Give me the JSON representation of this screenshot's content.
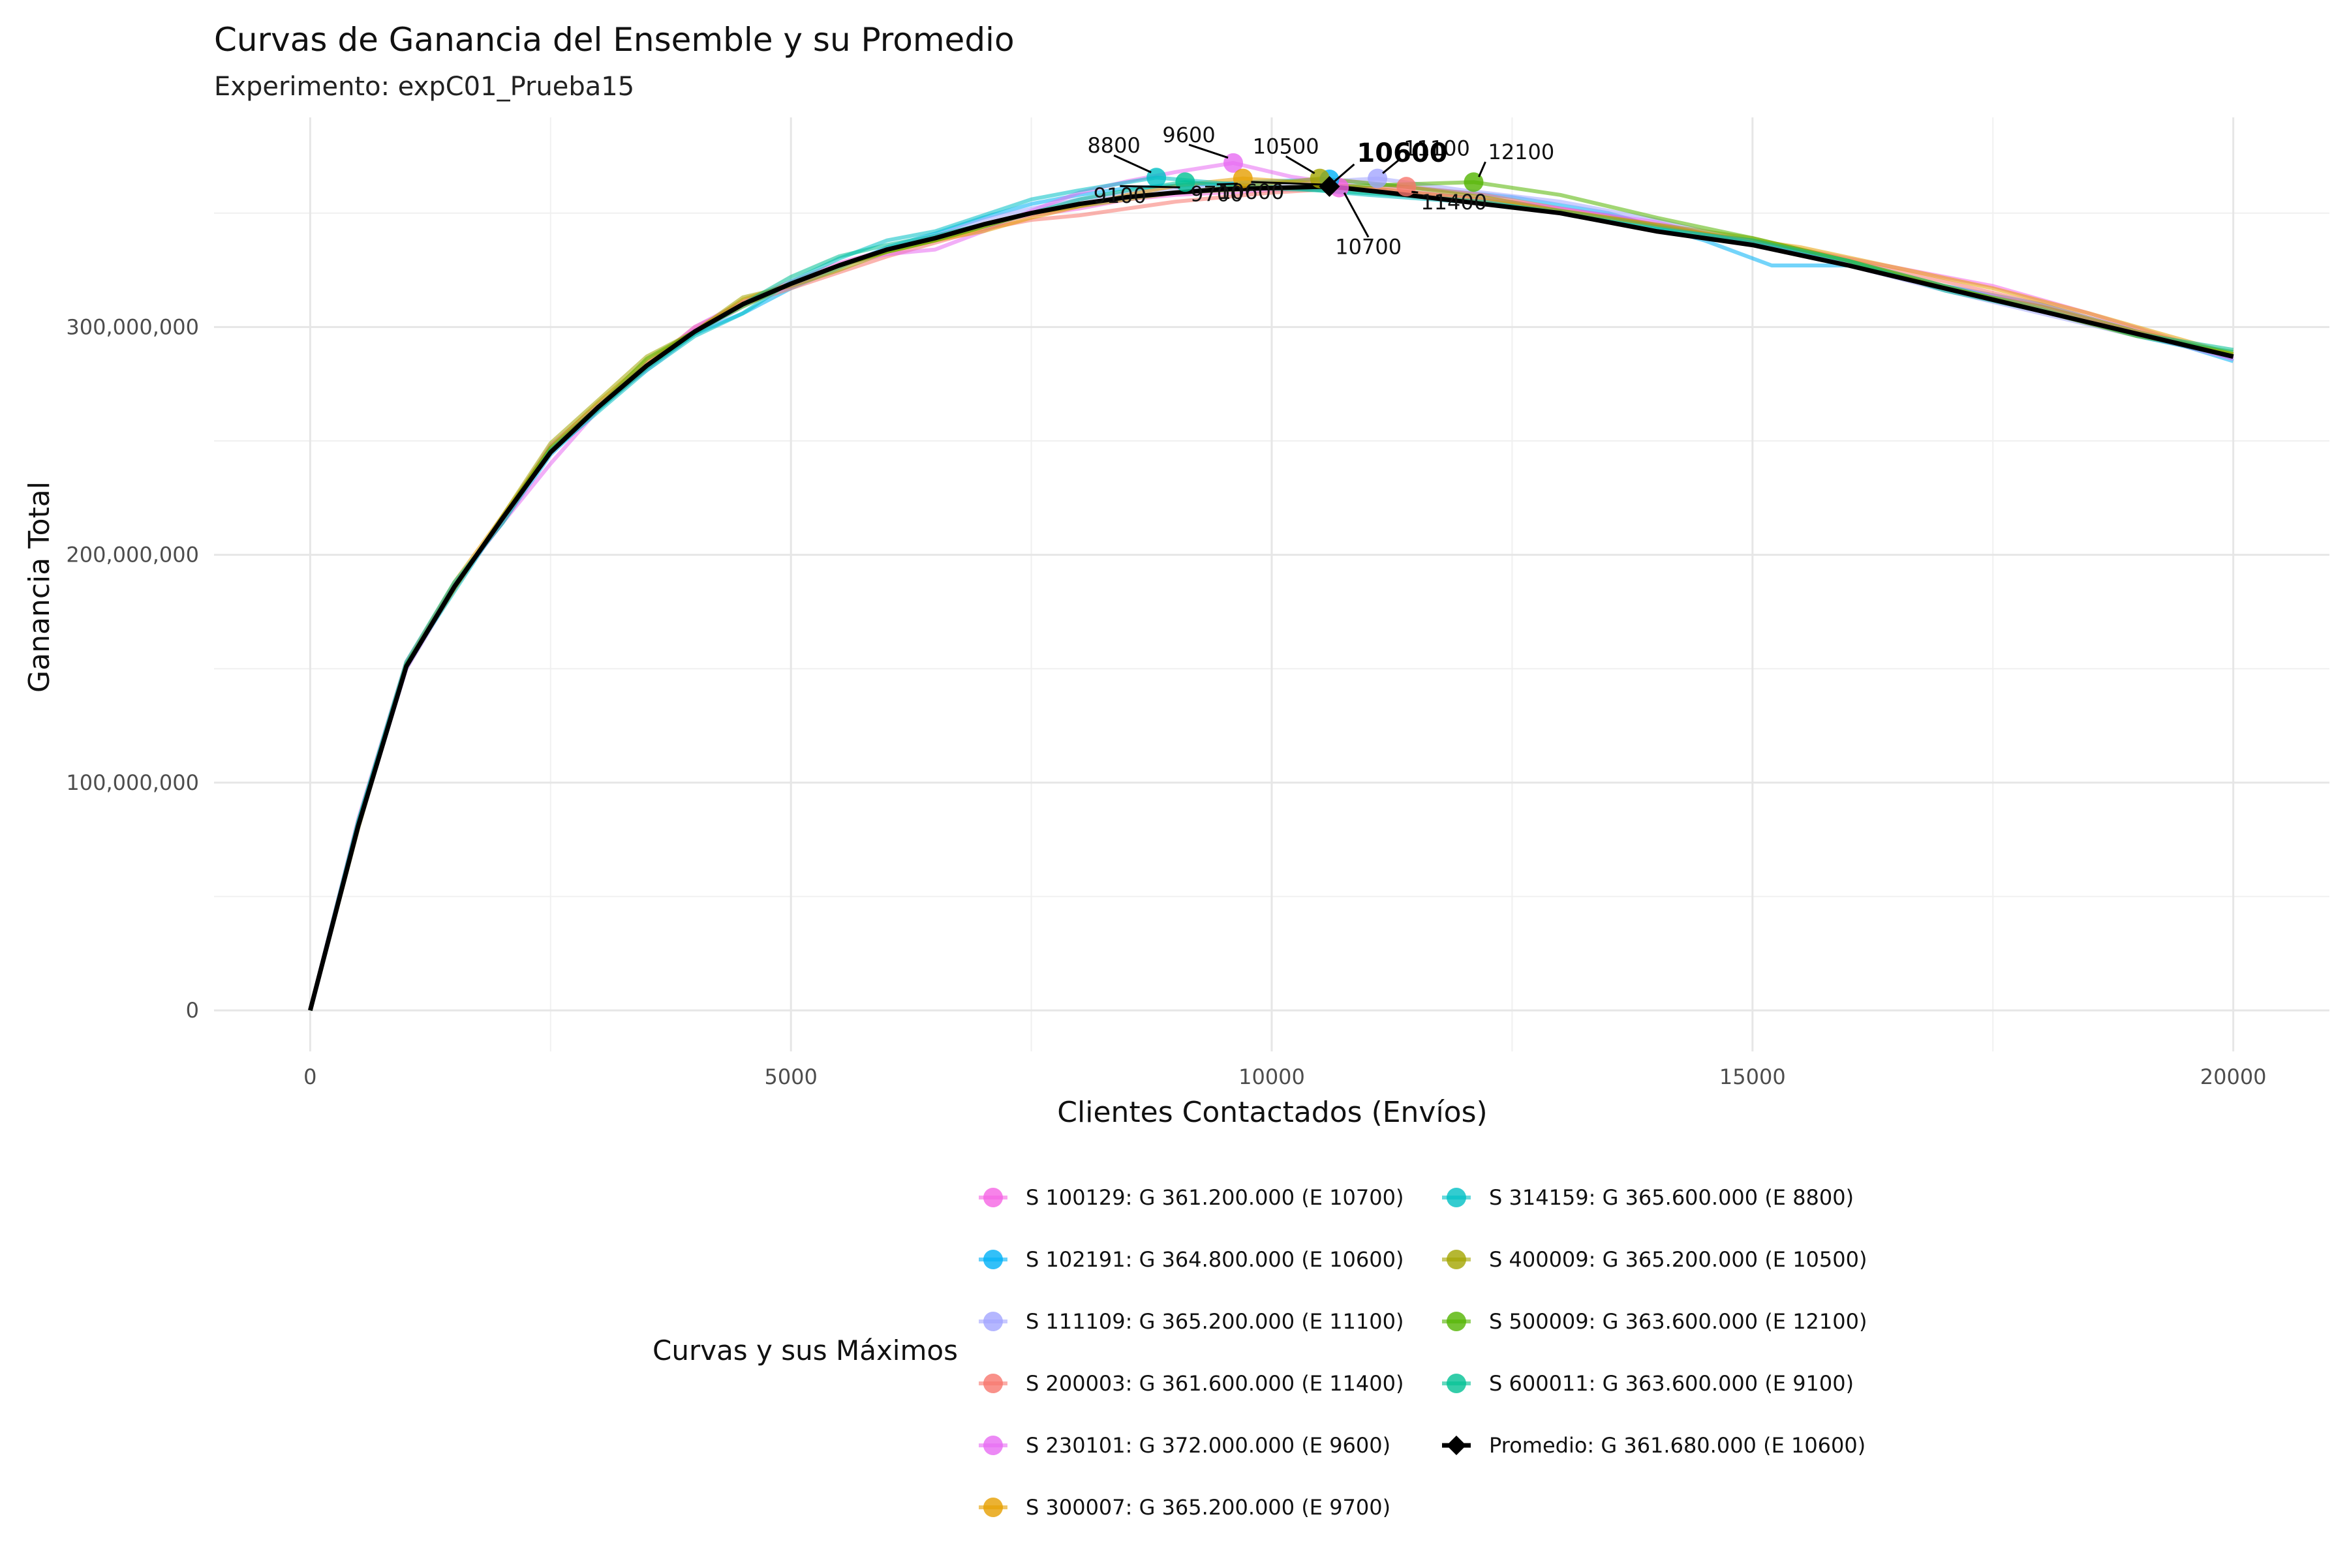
{
  "chart_data": {
    "type": "line",
    "title": "Curvas de Ganancia del Ensemble y su Promedio",
    "subtitle": "Experimento: expC01_Prueba15",
    "xlabel": "Clientes Contactados (Envíos)",
    "ylabel": "Ganancia Total",
    "xlim": [
      -1000,
      21000
    ],
    "ylim": [
      -18000000,
      392000000
    ],
    "x_ticks": [
      0,
      5000,
      10000,
      15000,
      20000
    ],
    "x_tick_labels": [
      "0",
      "5000",
      "10000",
      "15000",
      "20000"
    ],
    "y_ticks": [
      0,
      100000000,
      200000000,
      300000000
    ],
    "y_tick_labels": [
      "0",
      "100,000,000",
      "200,000,000",
      "300,000,000"
    ],
    "grid": true,
    "legend_title": "Curvas y sus Máximos",
    "legend_position": "bottom",
    "series": [
      {
        "name": "S 100129: G 361.200.000 (E 10700)",
        "color": "#F564E3",
        "max_x": 10700,
        "max_y": 361200000,
        "label": "10700",
        "x": [
          0,
          500,
          1000,
          1500,
          2000,
          2500,
          3000,
          3500,
          4000,
          4500,
          5000,
          5500,
          6000,
          6500,
          7000,
          7500,
          8000,
          8500,
          9000,
          9500,
          10000,
          10700,
          11500,
          12500,
          13500,
          14500,
          15500,
          16500,
          17500,
          18500,
          19500,
          20000
        ],
        "y": [
          0,
          82000000,
          150000000,
          186000000,
          216000000,
          248000000,
          266000000,
          284000000,
          299000000,
          311000000,
          320000000,
          328000000,
          334000000,
          339000000,
          345000000,
          349000000,
          352000000,
          356000000,
          358000000,
          359000000,
          360000000,
          361200000,
          359000000,
          355000000,
          349000000,
          341000000,
          334000000,
          326000000,
          318000000,
          306000000,
          293000000,
          286000000
        ]
      },
      {
        "name": "S 102191: G 364.800.000 (E 10600)",
        "color": "#00B0F6",
        "max_x": 10600,
        "max_y": 364800000,
        "label": "10600",
        "x": [
          0,
          500,
          1000,
          1500,
          2000,
          2500,
          3000,
          3500,
          4000,
          4500,
          5000,
          5500,
          6000,
          6500,
          7000,
          7500,
          8000,
          8500,
          9000,
          9500,
          10000,
          10600,
          11500,
          12500,
          13500,
          14500,
          15200,
          16000,
          17000,
          18000,
          19000,
          20000
        ],
        "y": [
          0,
          80000000,
          151000000,
          187000000,
          214000000,
          244000000,
          264000000,
          283000000,
          297000000,
          306000000,
          317000000,
          326000000,
          335000000,
          341000000,
          348000000,
          354000000,
          358000000,
          361000000,
          362000000,
          363000000,
          364000000,
          364800000,
          361000000,
          357000000,
          350000000,
          338000000,
          327000000,
          327000000,
          318000000,
          310000000,
          298000000,
          285000000
        ]
      },
      {
        "name": "S 111109: G 365.200.000 (E 11100)",
        "color": "#A3A5FF",
        "max_x": 11100,
        "max_y": 365200000,
        "label": "11100",
        "x": [
          0,
          500,
          1000,
          1500,
          2000,
          2500,
          3000,
          3500,
          4000,
          4500,
          5000,
          5500,
          6000,
          6500,
          7000,
          7500,
          8000,
          8500,
          9000,
          9500,
          10000,
          10600,
          11100,
          12000,
          13000,
          14000,
          15000,
          16000,
          17000,
          18000,
          19000,
          20000
        ],
        "y": [
          0,
          81000000,
          150000000,
          185000000,
          215000000,
          246000000,
          266000000,
          281000000,
          297000000,
          309000000,
          319000000,
          327000000,
          334000000,
          340000000,
          347000000,
          352000000,
          356000000,
          359000000,
          361000000,
          362000000,
          363000000,
          364000000,
          365200000,
          360000000,
          355000000,
          347000000,
          337000000,
          327000000,
          316000000,
          306000000,
          296000000,
          287000000
        ]
      },
      {
        "name": "S 200003: G 361.600.000 (E 11400)",
        "color": "#F8766D",
        "max_x": 11400,
        "max_y": 361600000,
        "label": "11400",
        "x": [
          0,
          500,
          1000,
          1500,
          2000,
          2500,
          3000,
          3500,
          4000,
          4500,
          5000,
          5500,
          6000,
          6500,
          7000,
          7500,
          8000,
          8500,
          9000,
          9500,
          10000,
          10600,
          11400,
          12200,
          13000,
          14000,
          15000,
          16000,
          17000,
          18000,
          19000,
          20000
        ],
        "y": [
          0,
          80000000,
          151000000,
          186000000,
          216000000,
          246000000,
          265000000,
          283000000,
          300000000,
          310000000,
          317000000,
          324000000,
          331000000,
          337000000,
          343000000,
          347000000,
          349000000,
          352000000,
          355000000,
          357000000,
          359000000,
          360500000,
          361600000,
          358000000,
          352000000,
          345000000,
          337000000,
          329000000,
          320000000,
          310000000,
          298000000,
          287000000
        ]
      },
      {
        "name": "S 230101: G 372.000.000 (E 9600)",
        "color": "#E76BF3",
        "max_x": 9600,
        "max_y": 372000000,
        "label": "9600",
        "x": [
          0,
          500,
          1000,
          1500,
          2000,
          2500,
          3000,
          3500,
          4000,
          4500,
          5000,
          5500,
          6000,
          6500,
          7000,
          7500,
          8000,
          8500,
          9000,
          9600,
          10200,
          11000,
          12000,
          13000,
          14000,
          15000,
          16000,
          17000,
          18000,
          19000,
          20000
        ],
        "y": [
          0,
          84000000,
          153000000,
          187000000,
          214000000,
          240000000,
          264000000,
          282000000,
          300000000,
          311000000,
          318000000,
          327000000,
          332000000,
          334000000,
          342000000,
          351000000,
          359000000,
          364000000,
          368000000,
          372000000,
          366000000,
          361000000,
          357000000,
          352000000,
          346000000,
          336000000,
          328000000,
          318000000,
          309000000,
          297000000,
          286000000
        ]
      },
      {
        "name": "S 300007: G 365.200.000 (E 9700)",
        "color": "#E69F00",
        "max_x": 9700,
        "max_y": 365200000,
        "label": "9700",
        "x": [
          0,
          500,
          1000,
          1500,
          2000,
          2500,
          3000,
          3500,
          4000,
          4500,
          5000,
          5500,
          6000,
          6500,
          7000,
          7500,
          8000,
          8500,
          9000,
          9700,
          10500,
          11500,
          12500,
          13500,
          14500,
          15500,
          16500,
          17500,
          18500,
          19500,
          20000
        ],
        "y": [
          0,
          81000000,
          152000000,
          188000000,
          217000000,
          247000000,
          267000000,
          285000000,
          298000000,
          312000000,
          319000000,
          327000000,
          333000000,
          338000000,
          342000000,
          348000000,
          353000000,
          358000000,
          362000000,
          365200000,
          363000000,
          359000000,
          354000000,
          348000000,
          341000000,
          335000000,
          326000000,
          317000000,
          306000000,
          294000000,
          288000000
        ]
      },
      {
        "name": "S 314159: G 365.600.000 (E 8800)",
        "color": "#00BFC4",
        "max_x": 8800,
        "max_y": 365600000,
        "label": "8800",
        "x": [
          0,
          500,
          1000,
          1500,
          2000,
          2500,
          3000,
          3500,
          4000,
          4500,
          5000,
          5500,
          6000,
          6500,
          7000,
          7500,
          8000,
          8800,
          9500,
          10200,
          11000,
          12000,
          13000,
          14000,
          15000,
          16000,
          17000,
          18000,
          19000,
          20000
        ],
        "y": [
          0,
          83000000,
          152000000,
          184000000,
          216000000,
          245000000,
          263000000,
          281000000,
          296000000,
          306000000,
          320000000,
          330000000,
          338000000,
          342000000,
          349000000,
          356000000,
          360000000,
          365600000,
          363000000,
          361000000,
          358000000,
          355000000,
          351000000,
          344000000,
          337000000,
          329000000,
          318000000,
          308000000,
          296000000,
          287000000
        ]
      },
      {
        "name": "S 400009: G 365.200.000 (E 10500)",
        "color": "#A3A500",
        "max_x": 10500,
        "max_y": 365200000,
        "label": "10500",
        "x": [
          0,
          500,
          1000,
          1500,
          2000,
          2500,
          3000,
          3500,
          4000,
          4500,
          5000,
          5500,
          6000,
          6500,
          7000,
          7500,
          8000,
          8500,
          9000,
          9500,
          10000,
          10500,
          11300,
          12200,
          13000,
          14000,
          15000,
          16000,
          17000,
          18000,
          19000,
          20000
        ],
        "y": [
          0,
          80000000,
          152000000,
          185000000,
          217000000,
          249000000,
          268000000,
          287000000,
          298000000,
          313000000,
          318000000,
          325000000,
          333000000,
          338000000,
          344000000,
          350000000,
          353000000,
          356000000,
          359000000,
          361000000,
          363000000,
          365200000,
          362000000,
          357000000,
          351000000,
          345000000,
          339000000,
          329000000,
          317000000,
          309000000,
          298000000,
          288000000
        ]
      },
      {
        "name": "S 500009: G 363.600.000 (E 12100)",
        "color": "#53B400",
        "max_x": 12100,
        "max_y": 363600000,
        "label": "12100",
        "x": [
          0,
          500,
          1000,
          1500,
          2000,
          2500,
          3000,
          3500,
          4000,
          4500,
          5000,
          5500,
          6000,
          6500,
          7000,
          7500,
          8000,
          8500,
          9000,
          9500,
          10000,
          10600,
          11300,
          12100,
          13000,
          14000,
          15000,
          16000,
          17000,
          18000,
          19000,
          20000
        ],
        "y": [
          0,
          81000000,
          151000000,
          186000000,
          216000000,
          247000000,
          265000000,
          286000000,
          298000000,
          309000000,
          319000000,
          327000000,
          333000000,
          338000000,
          344000000,
          350000000,
          354000000,
          357000000,
          359000000,
          360000000,
          361000000,
          361500000,
          362500000,
          363600000,
          358000000,
          348000000,
          339000000,
          329000000,
          318000000,
          307000000,
          296000000,
          289000000
        ]
      },
      {
        "name": "S 600011: G 363.600.000 (E 9100)",
        "color": "#00C094",
        "max_x": 9100,
        "max_y": 363600000,
        "label": "9100",
        "x": [
          0,
          500,
          1000,
          1500,
          2000,
          2500,
          3000,
          3500,
          4000,
          4500,
          5000,
          5500,
          6000,
          6500,
          7000,
          7500,
          8000,
          8500,
          9100,
          9800,
          10500,
          11300,
          12200,
          13000,
          14000,
          15000,
          16000,
          17000,
          18000,
          19000,
          20000
        ],
        "y": [
          0,
          83000000,
          153000000,
          188000000,
          214000000,
          246000000,
          264000000,
          282000000,
          297000000,
          310000000,
          322000000,
          331000000,
          336000000,
          340000000,
          345000000,
          350000000,
          356000000,
          360000000,
          363600000,
          361000000,
          360000000,
          358000000,
          355000000,
          350000000,
          343000000,
          338000000,
          329000000,
          316000000,
          307000000,
          297000000,
          290000000
        ]
      },
      {
        "name": "Promedio: G 361.680.000 (E 10600)",
        "color": "#000000",
        "max_x": 10600,
        "max_y": 361680000,
        "label": "10600",
        "x": [
          0,
          500,
          1000,
          1500,
          2000,
          2500,
          3000,
          3500,
          4000,
          4500,
          5000,
          5500,
          6000,
          6500,
          7000,
          7500,
          8000,
          8500,
          9000,
          9500,
          10000,
          10600,
          11200,
          12000,
          13000,
          14000,
          15000,
          16000,
          17000,
          18000,
          19000,
          20000
        ],
        "y": [
          0,
          81000000,
          151000000,
          186000000,
          216000000,
          245000000,
          265000000,
          283000000,
          298000000,
          310000000,
          319000000,
          327000000,
          334000000,
          339000000,
          345000000,
          350000000,
          354000000,
          357000000,
          359000000,
          360500000,
          361000000,
          361680000,
          359000000,
          355000000,
          350000000,
          342000000,
          336000000,
          327000000,
          317000000,
          307000000,
          297000000,
          287000000
        ]
      }
    ]
  }
}
